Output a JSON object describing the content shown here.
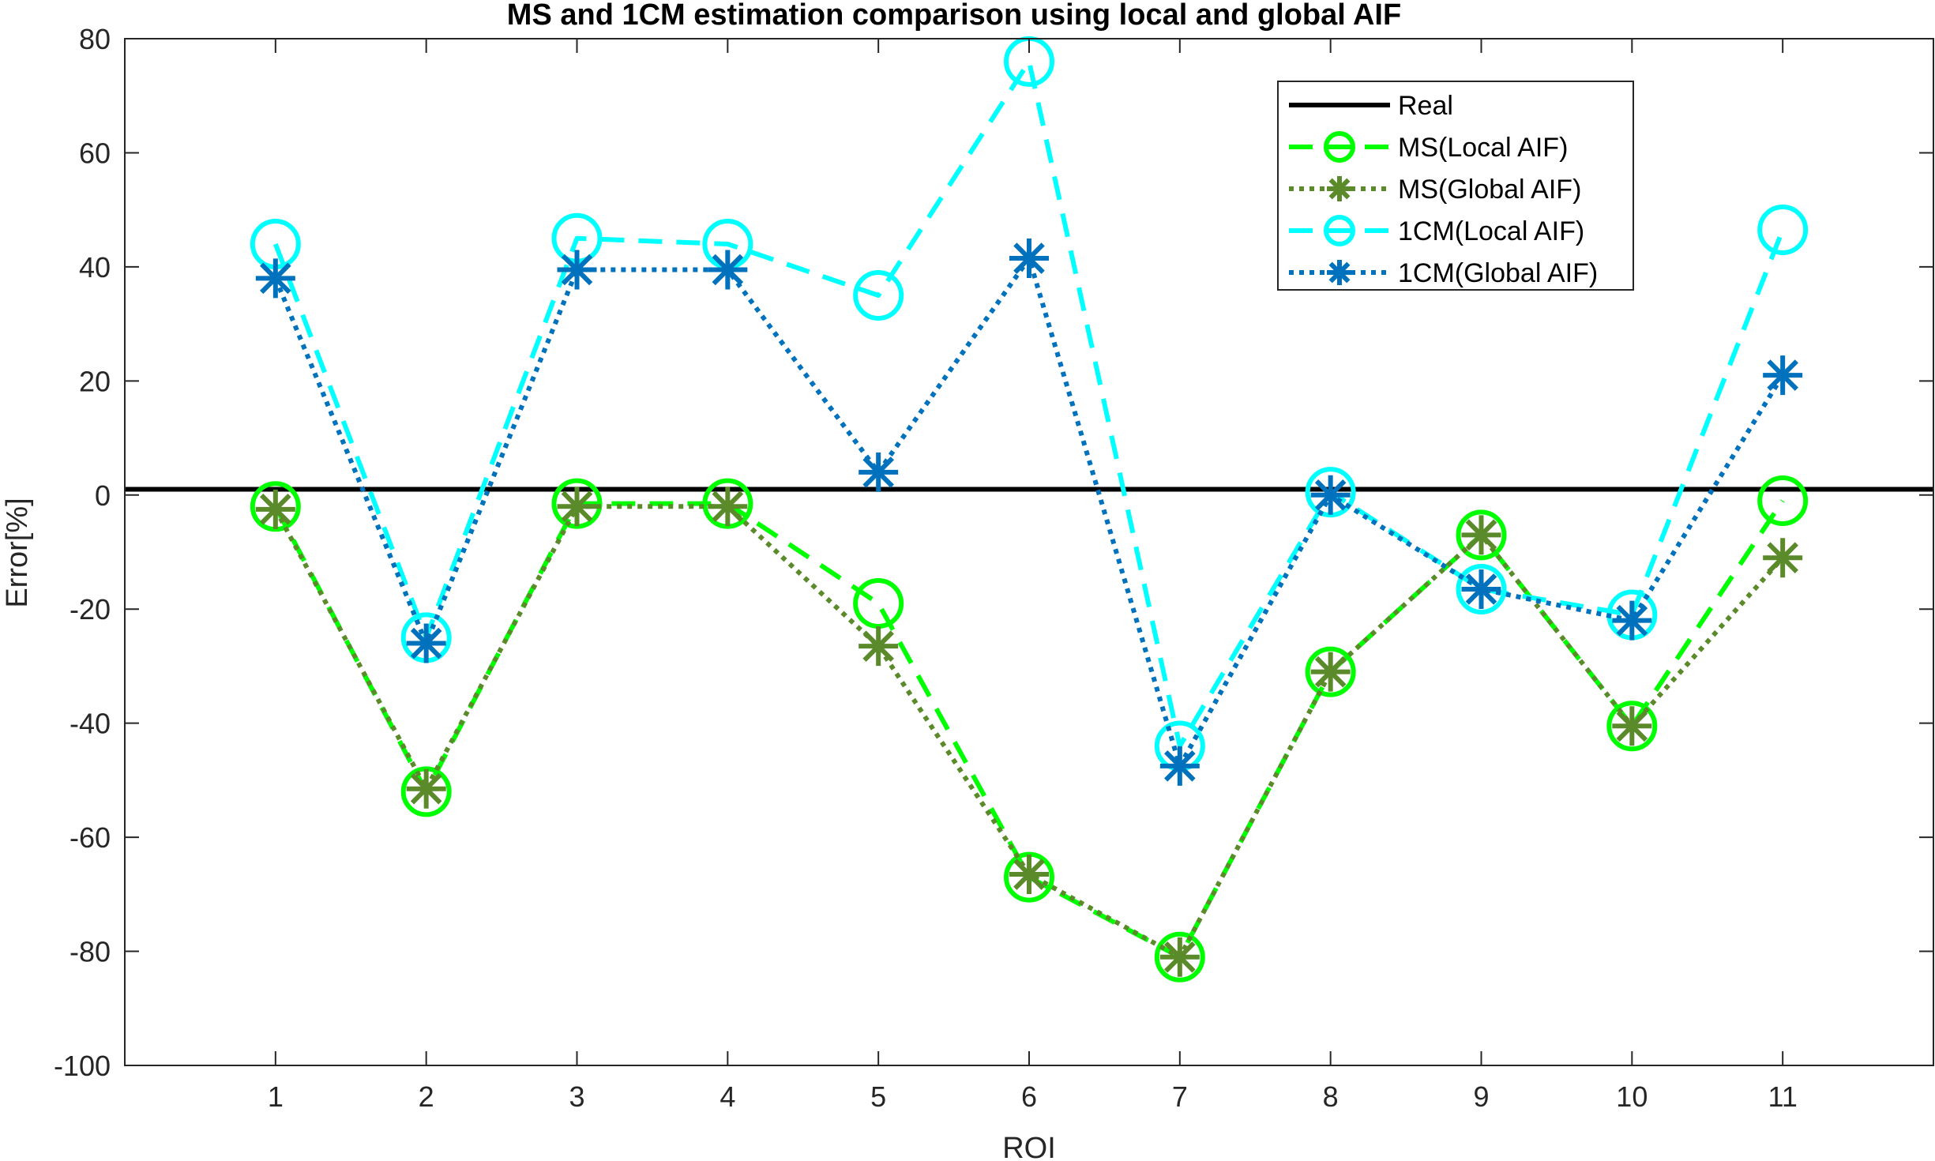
{
  "chart_data": {
    "type": "line",
    "title": "MS and 1CM estimation comparison using local and global AIF",
    "xlabel": "ROI",
    "ylabel": "Error[%]",
    "xlim": [
      0,
      12
    ],
    "ylim": [
      -100,
      80
    ],
    "xticks": [
      1,
      2,
      3,
      4,
      5,
      6,
      7,
      8,
      9,
      10,
      11
    ],
    "yticks": [
      -100,
      -80,
      -60,
      -40,
      -20,
      0,
      20,
      40,
      60,
      80
    ],
    "x": [
      1,
      2,
      3,
      4,
      5,
      6,
      7,
      8,
      9,
      10,
      11
    ],
    "reference": {
      "name": "Real",
      "value": 1,
      "color": "#000000"
    },
    "series": [
      {
        "name": "MS(Local AIF)",
        "color": "#00ff00",
        "dash": "dashed",
        "marker": "circle",
        "values": [
          -2,
          -52,
          -1.5,
          -1.5,
          -19,
          -67,
          -81,
          -31,
          -7,
          -40.5,
          -1
        ]
      },
      {
        "name": "MS(Global AIF)",
        "color": "#5a8a2a",
        "dash": "dotted",
        "marker": "star",
        "values": [
          -2.5,
          -51.5,
          -2,
          -2,
          -26.5,
          -66.5,
          -81,
          -31,
          -7,
          -40.5,
          -11
        ]
      },
      {
        "name": "1CM(Local AIF)",
        "color": "#00ffff",
        "dash": "dashed",
        "marker": "circle",
        "values": [
          44,
          -25,
          45,
          44,
          35,
          76,
          -44,
          0.5,
          -16.5,
          -21,
          46.5
        ]
      },
      {
        "name": "1CM(Global AIF)",
        "color": "#0072bd",
        "dash": "dotted",
        "marker": "star",
        "values": [
          38,
          -26,
          39.5,
          39.5,
          4,
          41.5,
          -47.5,
          0,
          -16.5,
          -22,
          21
        ]
      }
    ],
    "legend_position": "top-right",
    "grid": false
  }
}
